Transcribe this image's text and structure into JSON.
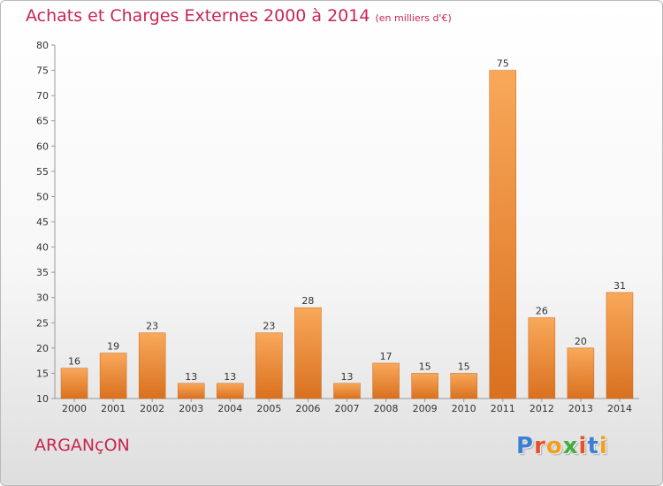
{
  "title": "Achats et Charges Externes 2000 à 2014",
  "unit": "(en milliers d'€)",
  "commune": "ARGANçON",
  "logo": {
    "letters": [
      "P",
      "r",
      "o",
      "x",
      "i",
      "t",
      "i"
    ],
    "colors": [
      "#3b7fd4",
      "#e6502a",
      "#f0a020",
      "#3fae3f",
      "#e6502a",
      "#3b7fd4",
      "#f0a020"
    ]
  },
  "colors": {
    "accent": "#c82650",
    "bar_light": "#f9a85a",
    "bar_dark": "#d9711f"
  },
  "chart_data": {
    "type": "bar",
    "title": "Achats et Charges Externes 2000 à 2014",
    "xlabel": "",
    "ylabel": "",
    "categories": [
      "2000",
      "2001",
      "2002",
      "2003",
      "2004",
      "2005",
      "2006",
      "2007",
      "2008",
      "2009",
      "2010",
      "2011",
      "2012",
      "2013",
      "2014"
    ],
    "values": [
      16,
      19,
      23,
      13,
      13,
      23,
      28,
      13,
      17,
      15,
      15,
      75,
      26,
      20,
      31
    ],
    "ylim": [
      10,
      80
    ],
    "yticks": [
      10,
      15,
      20,
      25,
      30,
      35,
      40,
      45,
      50,
      55,
      60,
      65,
      70,
      75,
      80
    ],
    "grid": false,
    "legend": "none"
  }
}
